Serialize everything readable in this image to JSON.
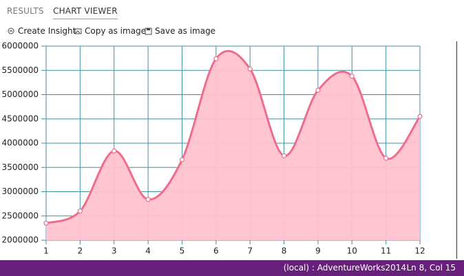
{
  "tabs": [
    "RESULTS",
    "CHART VIEWER"
  ],
  "toolbar": [
    "Create Insight",
    "Copy as image",
    "Save as image"
  ],
  "chart_data": {
    "type": "area",
    "x": [
      1,
      2,
      3,
      4,
      5,
      6,
      7,
      8,
      9,
      10,
      11,
      12
    ],
    "values": [
      2350000,
      2600000,
      3840000,
      2840000,
      3660000,
      5740000,
      5530000,
      3740000,
      5090000,
      5380000,
      3690000,
      4550000
    ],
    "color": "#f06c8c",
    "fill": "#ffc2cf",
    "grid_color": "#3f8fa6",
    "xlim": [
      1,
      12
    ],
    "xticks": [
      1,
      2,
      3,
      4,
      5,
      6,
      7,
      8,
      9,
      10,
      11,
      12
    ],
    "ylim": [
      2000000,
      6000000
    ],
    "yticks": [
      2000000,
      2500000,
      3000000,
      3500000,
      4000000,
      4500000,
      5000000,
      5500000,
      6000000
    ],
    "grid": true
  },
  "status": {
    "connection": "(local) : AdventureWorks2014",
    "position": "Ln 8, Col 15"
  }
}
